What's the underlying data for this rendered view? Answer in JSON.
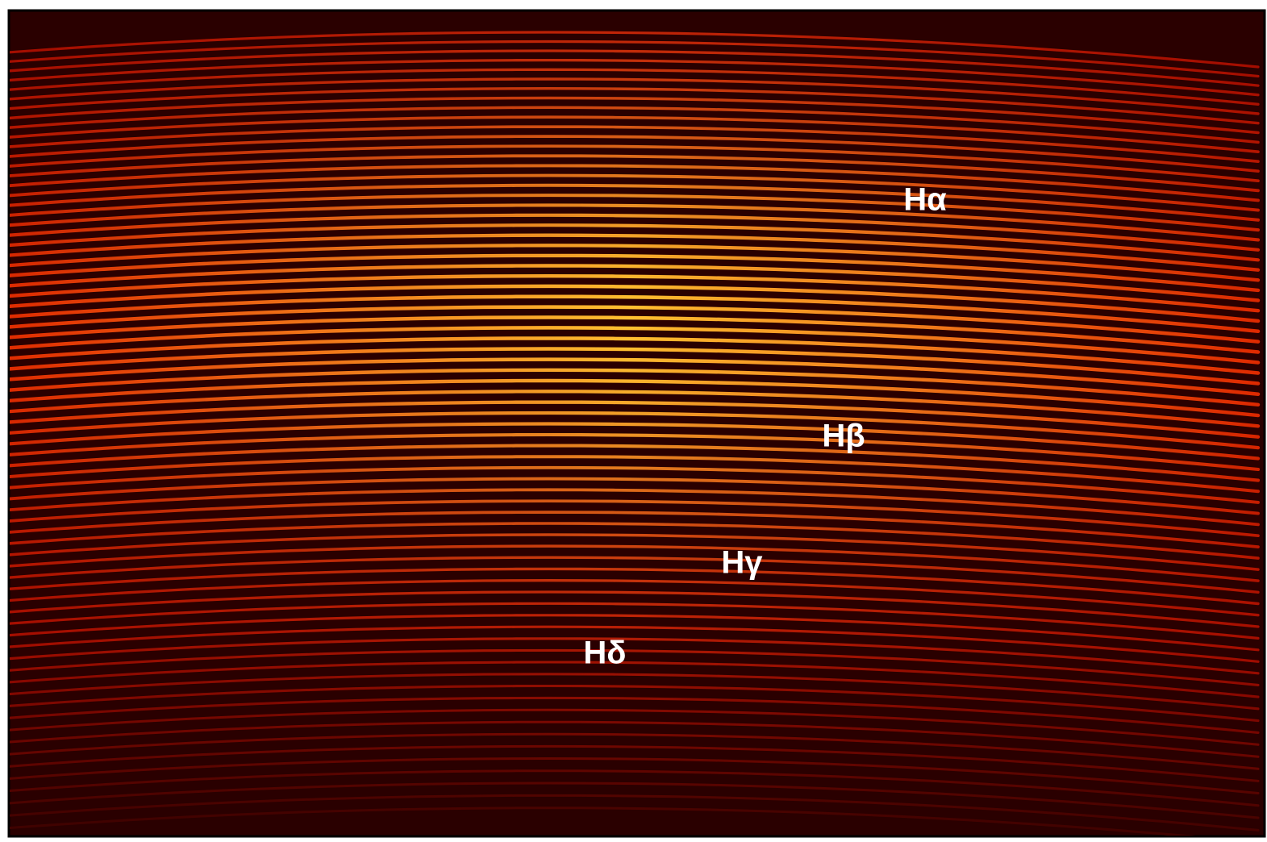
{
  "labels": [
    "Hα",
    "Hβ",
    "Hγ",
    "Hδ"
  ]
}
